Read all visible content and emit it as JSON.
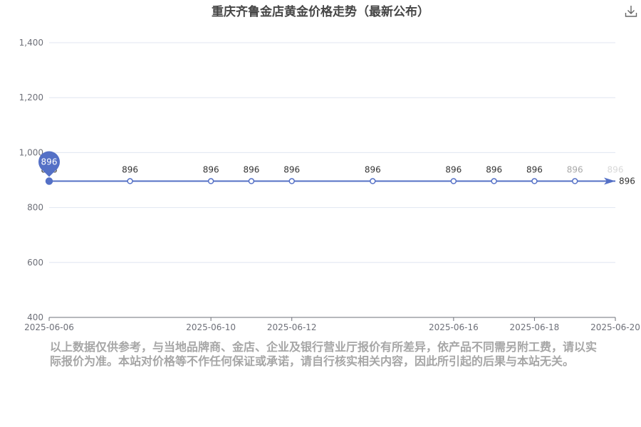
{
  "chart_data": {
    "type": "line",
    "title": "重庆齐鲁金店黄金价格走势（最新公布）",
    "x": [
      "2025-06-06",
      "2025-06-08",
      "2025-06-10",
      "2025-06-11",
      "2025-06-12",
      "2025-06-14",
      "2025-06-16",
      "2025-06-17",
      "2025-06-18",
      "2025-06-19",
      "2025-06-20"
    ],
    "x_ticks": [
      "2025-06-06",
      "2025-06-10",
      "2025-06-12",
      "2025-06-16",
      "2025-06-18",
      "2025-06-20"
    ],
    "series": [
      {
        "values": [
          896,
          896,
          896,
          896,
          896,
          896,
          896,
          896,
          896,
          896,
          896
        ]
      }
    ],
    "ylim": [
      400,
      1400
    ],
    "y_ticks": [
      "400",
      "600",
      "800",
      "1,000",
      "1,200",
      "1,400"
    ],
    "grid": true,
    "max_marker_label": "896",
    "end_label": "896",
    "line_color": "#5470c6"
  },
  "note": "以上数据仅供参考，与当地品牌商、金店、企业及银行营业厅报价有所差异，依产品不同需另附工费，请以实际报价为准。本站对价格等不作任何保证或承诺，请自行核实相关内容，因此所引起的后果与本站无关。",
  "toolbar": {
    "download_icon": "download-icon"
  }
}
